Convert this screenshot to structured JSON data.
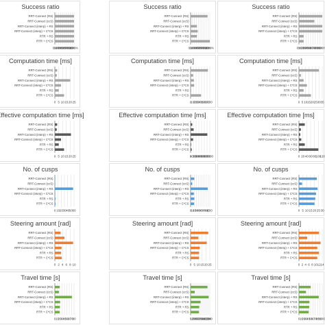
{
  "categories": [
    "RRT-Connect (RS)",
    "RRT-Connect (ccS)",
    "RRT-Connect (interp) + RS",
    "RRT-Connect (interp) + C*CS",
    "RTR + RS",
    "RTR + C*CS"
  ],
  "colors": {
    "gray": "#a6a6a6",
    "dark": "#595959",
    "blue": "#5b9bd5",
    "orange": "#ed7d31",
    "green": "#70ad47",
    "grid": "#d9d9d9",
    "text": "#404040",
    "axis": "#595959"
  },
  "chart_data": [
    {
      "type": "bar",
      "row": 0,
      "col": 0,
      "title": "Success ratio",
      "color": "gray",
      "xlim": [
        0,
        100
      ],
      "ticks": [
        0,
        10,
        20,
        30,
        40,
        50,
        60,
        70,
        80,
        90,
        100
      ],
      "tick_suffix": "%",
      "values": [
        100,
        100,
        100,
        100,
        100,
        100
      ]
    },
    {
      "type": "bar",
      "row": 0,
      "col": 1,
      "title": "Success ratio",
      "color": "gray",
      "xlim": [
        0,
        100
      ],
      "ticks": [
        0,
        10,
        20,
        30,
        40,
        50,
        60,
        70,
        80,
        90,
        100
      ],
      "tick_suffix": "%",
      "values": [
        88,
        2,
        33,
        37,
        33,
        100
      ]
    },
    {
      "type": "bar",
      "row": 0,
      "col": 2,
      "title": "Success ratio",
      "color": "gray",
      "xlim": [
        0,
        100
      ],
      "ticks": [
        0,
        10,
        20,
        30,
        40,
        50,
        60,
        70,
        80,
        90,
        100
      ],
      "tick_suffix": "%",
      "values": [
        100,
        66,
        100,
        100,
        20,
        20
      ]
    },
    {
      "type": "bar",
      "row": 1,
      "col": 0,
      "title": "Computation time [ms]",
      "color": "gray",
      "xlim": [
        0,
        25
      ],
      "ticks": [
        0,
        5,
        10,
        15,
        20,
        25
      ],
      "values": [
        3,
        2.5,
        20,
        8,
        5,
        12
      ]
    },
    {
      "type": "bar",
      "row": 1,
      "col": 1,
      "title": "Computation time [ms]",
      "color": "gray",
      "xlim": [
        0,
        700
      ],
      "ticks": [
        0,
        100,
        200,
        300,
        400,
        500,
        600,
        700
      ],
      "values": [
        630,
        90,
        120,
        130,
        20,
        380
      ]
    },
    {
      "type": "bar",
      "row": 1,
      "col": 2,
      "title": "Computation time [ms]",
      "color": "gray",
      "xlim": [
        0,
        35
      ],
      "ticks": [
        0,
        5,
        10,
        15,
        20,
        25,
        30,
        35
      ],
      "values": [
        30,
        3,
        7,
        12,
        7,
        18
      ]
    },
    {
      "type": "bar",
      "row": 2,
      "col": 0,
      "title": "Effective computation time [ms]",
      "color": "dark",
      "xlim": [
        0,
        25
      ],
      "ticks": [
        0,
        5,
        10,
        15,
        20,
        25
      ],
      "values": [
        3,
        2.5,
        21,
        8,
        5,
        12
      ]
    },
    {
      "type": "bar",
      "row": 2,
      "col": 1,
      "title": "Effective computation time [ms]",
      "color": "dark",
      "xlim": [
        0,
        7000
      ],
      "ticks": [
        0,
        1000,
        2000,
        3000,
        4000,
        5000,
        6000,
        7000
      ],
      "values": [
        600,
        1100,
        6100,
        900,
        200,
        400
      ]
    },
    {
      "type": "bar",
      "row": 2,
      "col": 2,
      "title": "Effective computation time [ms]",
      "color": "dark",
      "xlim": [
        0,
        120
      ],
      "ticks": [
        0,
        20,
        40,
        60,
        80,
        100,
        120
      ],
      "values": [
        30,
        10,
        7,
        12,
        30,
        100
      ]
    },
    {
      "type": "bar",
      "row": 3,
      "col": 0,
      "title": "No. of cusps",
      "color": "blue",
      "xlim": [
        0,
        60
      ],
      "ticks": [
        0,
        10,
        20,
        30,
        40,
        50,
        60
      ],
      "values": [
        1,
        1,
        57,
        1,
        2,
        2
      ]
    },
    {
      "type": "bar",
      "row": 3,
      "col": 1,
      "title": "No. of cusps",
      "color": "blue",
      "xlim": [
        0,
        100
      ],
      "ticks": [
        0,
        10,
        20,
        30,
        40,
        50,
        60,
        70,
        80,
        90,
        100
      ],
      "values": [
        19,
        8,
        89,
        17,
        19,
        18
      ]
    },
    {
      "type": "bar",
      "row": 3,
      "col": 2,
      "title": "No. of cusps",
      "color": "blue",
      "xlim": [
        0,
        30
      ],
      "ticks": [
        0,
        5,
        10,
        15,
        20,
        25,
        30
      ],
      "values": [
        23,
        4,
        24,
        22,
        21,
        20
      ]
    },
    {
      "type": "bar",
      "row": 4,
      "col": 0,
      "title": "Steering amount [rad]",
      "color": "orange",
      "xlim": [
        0,
        10
      ],
      "ticks": [
        0,
        2,
        4,
        6,
        8,
        10
      ],
      "values": [
        3,
        5,
        9.5,
        3.5,
        3.2,
        3.6
      ]
    },
    {
      "type": "bar",
      "row": 4,
      "col": 1,
      "title": "Steering amount [rad]",
      "color": "orange",
      "xlim": [
        0,
        25
      ],
      "ticks": [
        0,
        5,
        10,
        15,
        20,
        25
      ],
      "values": [
        23,
        10,
        21,
        12,
        11,
        11
      ]
    },
    {
      "type": "bar",
      "row": 4,
      "col": 2,
      "title": "Steering amount [rad]",
      "color": "orange",
      "xlim": [
        0,
        14
      ],
      "ticks": [
        0,
        2,
        4,
        6,
        8,
        10,
        12,
        14
      ],
      "values": [
        12,
        5,
        13,
        11,
        12,
        11
      ]
    },
    {
      "type": "bar",
      "row": 5,
      "col": 0,
      "title": "Travel time [s]",
      "color": "green",
      "xlim": [
        0,
        80
      ],
      "ticks": [
        0,
        10,
        20,
        30,
        40,
        50,
        60,
        70,
        80
      ],
      "values": [
        20,
        17,
        71,
        22,
        21,
        20
      ]
    },
    {
      "type": "bar",
      "row": 5,
      "col": 1,
      "title": "Travel time [s]",
      "color": "green",
      "xlim": [
        0,
        140
      ],
      "ticks": [
        0,
        10,
        20,
        30,
        40,
        50,
        60,
        70,
        80,
        90,
        100,
        110,
        120,
        130,
        140
      ],
      "values": [
        123,
        30,
        132,
        73,
        63,
        61
      ]
    },
    {
      "type": "bar",
      "row": 5,
      "col": 2,
      "title": "Travel time [s]",
      "color": "green",
      "xlim": [
        0,
        100
      ],
      "ticks": [
        0,
        10,
        20,
        30,
        40,
        50,
        60,
        70,
        80,
        90,
        100
      ],
      "values": [
        50,
        30,
        85,
        45,
        44,
        42
      ]
    }
  ]
}
